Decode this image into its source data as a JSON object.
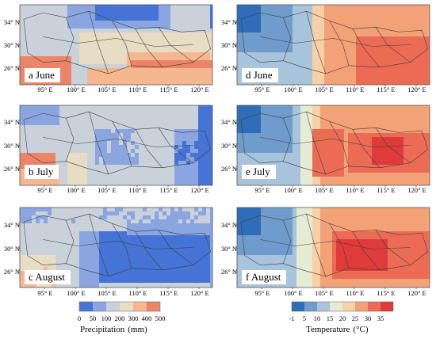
{
  "panels": [
    {
      "id": "a",
      "label": "a June",
      "variable": "precipitation"
    },
    {
      "id": "b",
      "label": "b July",
      "variable": "precipitation"
    },
    {
      "id": "c",
      "label": "c August",
      "variable": "precipitation"
    },
    {
      "id": "d",
      "label": "d June",
      "variable": "temperature"
    },
    {
      "id": "e",
      "label": "e July",
      "variable": "temperature"
    },
    {
      "id": "f",
      "label": "f August",
      "variable": "temperature"
    }
  ],
  "lat_labels": [
    "34° N",
    "30° N",
    "26° N"
  ],
  "lon_labels": [
    "95° E",
    "100° E",
    "105° E",
    "110° E",
    "115° E",
    "120° E"
  ],
  "precip_legend": {
    "title": "Precipitation",
    "unit": "(mm)",
    "ticks": [
      "0",
      "50",
      "100",
      "200",
      "300",
      "400",
      "500"
    ],
    "colors": [
      "#4573d6",
      "#8aa5df",
      "#c9d2db",
      "#e7dcc4",
      "#f4b78f",
      "#ec8467"
    ]
  },
  "temp_legend": {
    "title": "Temperature",
    "unit": "(°C)",
    "ticks": [
      "-1",
      "5",
      "10",
      "15",
      "20",
      "25",
      "30",
      "35"
    ],
    "colors": [
      "#2f6db8",
      "#6f9ccc",
      "#a8c3dc",
      "#e6ecd4",
      "#f7d0a8",
      "#f3a277",
      "#eb6b55",
      "#df3b3b"
    ]
  },
  "colors": {
    "ocean_blue": "#2b60d0",
    "border_line": "#3d3d3d"
  }
}
